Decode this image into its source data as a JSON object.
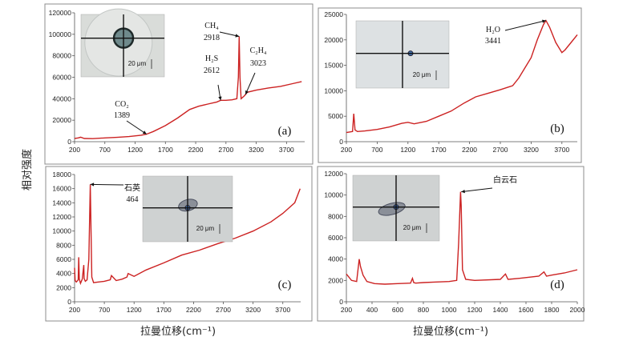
{
  "figure": {
    "y_axis_label": "相对强度",
    "x_axis_label_left": "拉曼位移(cm⁻¹)",
    "x_axis_label_right": "拉曼位移(cm⁻¹)",
    "line_color": "#cc2222"
  },
  "chart_data": [
    {
      "panel": "a",
      "panel_label": "(a)",
      "type": "line",
      "xlim": [
        200,
        4000
      ],
      "ylim": [
        0,
        120000
      ],
      "xticks": [
        200,
        700,
        1200,
        1700,
        2200,
        2700,
        3200,
        3700
      ],
      "yticks": [
        0,
        20000,
        40000,
        60000,
        80000,
        100000,
        120000
      ],
      "series": [
        {
          "name": "spectrum",
          "x": [
            200,
            260,
            300,
            360,
            500,
            700,
            900,
            1100,
            1300,
            1389,
            1500,
            1700,
            1900,
            2100,
            2250,
            2400,
            2550,
            2612,
            2700,
            2800,
            2880,
            2905,
            2918,
            2932,
            2950,
            3000,
            3023,
            3050,
            3200,
            3400,
            3600,
            3800,
            3950
          ],
          "y": [
            3000,
            3500,
            4200,
            3000,
            2800,
            3500,
            4000,
            4800,
            6000,
            7000,
            9500,
            15000,
            22000,
            30000,
            33000,
            35000,
            37000,
            38500,
            38500,
            39000,
            40000,
            60000,
            98000,
            60000,
            40000,
            42500,
            44000,
            46000,
            48000,
            50000,
            51500,
            54000,
            56000
          ]
        }
      ],
      "annotations": [
        {
          "text": "CO₂",
          "value": "1389"
        },
        {
          "text": "H₂S",
          "value": "2612"
        },
        {
          "text": "CH₄",
          "value": "2918"
        },
        {
          "text": "C₂H₄",
          "value": "3023"
        }
      ],
      "inset_scale": "20 μm"
    },
    {
      "panel": "b",
      "panel_label": "(b)",
      "type": "line",
      "xlim": [
        200,
        3950
      ],
      "ylim": [
        0,
        25000
      ],
      "xticks": [
        200,
        700,
        1200,
        1700,
        2200,
        2700,
        3200,
        3700
      ],
      "yticks": [
        0,
        5000,
        10000,
        15000,
        20000,
        25000
      ],
      "series": [
        {
          "name": "spectrum",
          "x": [
            200,
            250,
            300,
            320,
            340,
            380,
            500,
            700,
            900,
            1100,
            1200,
            1300,
            1500,
            1700,
            1900,
            2100,
            2300,
            2500,
            2700,
            2900,
            3000,
            3100,
            3200,
            3300,
            3400,
            3441,
            3500,
            3600,
            3700,
            3750,
            3850,
            3950
          ],
          "y": [
            1800,
            1900,
            2000,
            5500,
            2300,
            2000,
            2100,
            2400,
            2900,
            3600,
            3800,
            3500,
            4000,
            5000,
            6000,
            7500,
            8800,
            9500,
            10200,
            11000,
            12500,
            14500,
            16500,
            20000,
            23000,
            23800,
            22500,
            19500,
            17500,
            18000,
            19500,
            21000
          ]
        }
      ],
      "annotations": [
        {
          "text": "H₂O",
          "value": "3441"
        }
      ],
      "inset_scale": "20 μm"
    },
    {
      "panel": "c",
      "panel_label": "(c)",
      "type": "line",
      "xlim": [
        200,
        4000
      ],
      "ylim": [
        0,
        18000
      ],
      "xticks": [
        200,
        700,
        1200,
        1700,
        2200,
        2700,
        3200,
        3700
      ],
      "yticks": [
        0,
        2000,
        4000,
        6000,
        8000,
        10000,
        12000,
        14000,
        16000,
        18000
      ],
      "series": [
        {
          "name": "spectrum",
          "x": [
            200,
            210,
            230,
            260,
            270,
            280,
            300,
            330,
            355,
            360,
            380,
            410,
            440,
            464,
            490,
            520,
            600,
            700,
            800,
            820,
            900,
            1000,
            1080,
            1100,
            1200,
            1400,
            1700,
            2000,
            2300,
            2600,
            2900,
            3200,
            3500,
            3700,
            3900,
            3990
          ],
          "y": [
            4800,
            3000,
            2800,
            3100,
            6300,
            3200,
            2600,
            3200,
            5200,
            3300,
            2900,
            3100,
            6000,
            16600,
            3500,
            2700,
            2800,
            2900,
            3100,
            3700,
            3000,
            3200,
            3500,
            4000,
            3600,
            4500,
            5500,
            6600,
            7300,
            8200,
            9000,
            10000,
            11300,
            12500,
            14000,
            16000
          ]
        }
      ],
      "annotations": [
        {
          "text": "石英",
          "value": "464"
        }
      ],
      "inset_scale": "20 μm"
    },
    {
      "panel": "d",
      "panel_label": "(d)",
      "type": "line",
      "xlim": [
        200,
        2000
      ],
      "ylim": [
        0,
        12000
      ],
      "xticks": [
        200,
        400,
        600,
        800,
        1000,
        1200,
        1400,
        1600,
        1800,
        2000
      ],
      "yticks": [
        0,
        2000,
        4000,
        6000,
        8000,
        10000,
        12000
      ],
      "series": [
        {
          "name": "spectrum",
          "x": [
            200,
            240,
            280,
            300,
            310,
            330,
            360,
            420,
            500,
            600,
            700,
            715,
            725,
            740,
            800,
            900,
            1000,
            1060,
            1075,
            1090,
            1095,
            1105,
            1130,
            1200,
            1400,
            1440,
            1460,
            1550,
            1700,
            1740,
            1760,
            1800,
            1900,
            2000
          ],
          "y": [
            2600,
            2000,
            1900,
            4000,
            3300,
            2500,
            1900,
            1700,
            1650,
            1700,
            1750,
            2200,
            1800,
            1750,
            1800,
            1850,
            1900,
            2000,
            5500,
            10300,
            9000,
            3000,
            2100,
            2000,
            2100,
            2600,
            2100,
            2200,
            2400,
            2800,
            2400,
            2500,
            2700,
            3000
          ]
        }
      ],
      "annotations": [
        {
          "text": "白云石"
        }
      ],
      "inset_scale": "20 μm"
    }
  ]
}
